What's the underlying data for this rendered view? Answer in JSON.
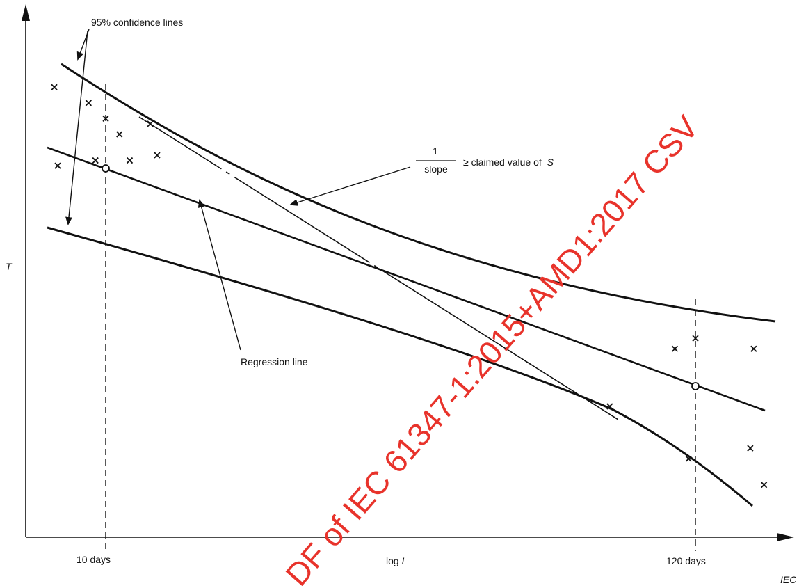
{
  "chart_data": {
    "type": "scatter",
    "xlabel_prefix": "log ",
    "xlabel_var": "L",
    "ylabel": "T",
    "ticks": [
      "10 days",
      "120 days"
    ],
    "annotations": {
      "confidence": "95% confidence lines",
      "regression": "Regression line",
      "fraction_num": "1",
      "fraction_den": "slope",
      "claim": "≥ claimed value of",
      "claim_var": "S"
    },
    "series": [
      {
        "values": [
          [
            0.07,
            0.71
          ],
          [
            0.125,
            0.72
          ],
          [
            0.14,
            0.8
          ],
          [
            0.16,
            0.77
          ],
          [
            0.175,
            0.72
          ],
          [
            0.215,
            0.73
          ],
          [
            0.205,
            0.79
          ],
          [
            0.115,
            0.83
          ],
          [
            0.065,
            0.86
          ],
          [
            0.97,
            0.36
          ],
          [
            1.0,
            0.38
          ],
          [
            1.085,
            0.36
          ],
          [
            0.99,
            0.15
          ],
          [
            1.08,
            0.17
          ],
          [
            1.1,
            0.1
          ],
          [
            0.875,
            0.25
          ]
        ]
      }
    ],
    "regression_anchor_points": [
      [
        0.14,
        0.77
      ],
      [
        1.0,
        0.3
      ]
    ],
    "grid": false
  },
  "footer": {
    "source_tag": "IEC"
  },
  "watermark": {
    "text": "DF of IEC 61347-1:2015+AMD1:2017 CSV"
  },
  "colors": {
    "ink": "#111111",
    "watermark": "#e8332b"
  }
}
